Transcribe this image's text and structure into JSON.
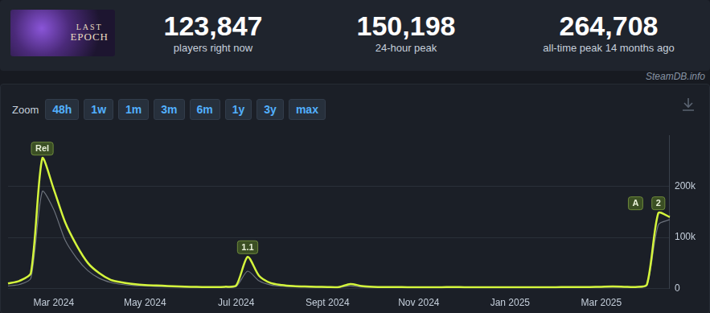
{
  "header": {
    "logo": [
      "LAST",
      "EPOCH"
    ],
    "stats": [
      {
        "value": "123,847",
        "label": "players right now"
      },
      {
        "value": "150,198",
        "label": "24-hour peak"
      },
      {
        "value": "264,708",
        "label": "all-time peak 14 months ago"
      }
    ],
    "source": "SteamDB.info",
    "zoom_label": "Zoom",
    "zoom_buttons": [
      "48h",
      "1w",
      "1m",
      "3m",
      "6m",
      "1y",
      "3y",
      "max"
    ]
  },
  "chart_data": {
    "type": "line",
    "categories": [
      null,
      null,
      null,
      null,
      "Mar 2024",
      null,
      null,
      null,
      null,
      null,
      null,
      null,
      "May 2024",
      null,
      null,
      null,
      null,
      null,
      null,
      null,
      "Jul 2024",
      null,
      null,
      null,
      null,
      null,
      null,
      null,
      "Sept 2024",
      null,
      null,
      null,
      null,
      null,
      null,
      null,
      "Nov 2024",
      null,
      null,
      null,
      null,
      null,
      null,
      null,
      "Jan 2025",
      null,
      null,
      null,
      null,
      null,
      null,
      null,
      "Mar 2025",
      null,
      null,
      null,
      null,
      null,
      null
    ],
    "series": [
      {
        "color": "#6b717b",
        "values": [
          5000,
          8000,
          20000,
          190000,
          155000,
          95000,
          60000,
          35000,
          20000,
          12000,
          8000,
          6000,
          5000,
          4000,
          3500,
          3000,
          2500,
          2500,
          2500,
          2500,
          4000,
          34000,
          15000,
          7000,
          4500,
          3500,
          3000,
          2500,
          2000,
          2000,
          5000,
          3000,
          2500,
          2000,
          2000,
          2000,
          2000,
          2000,
          2000,
          2000,
          2000,
          2000,
          2000,
          2000,
          2000,
          2000,
          2000,
          2000,
          2000,
          2000,
          2000,
          2000,
          2500,
          2500,
          2500,
          2500,
          6000,
          125000,
          135000
        ]
      },
      {
        "color": "#d4f53c",
        "values": [
          10000,
          15000,
          30000,
          255000,
          195000,
          130000,
          85000,
          50000,
          30000,
          17000,
          12000,
          9000,
          7000,
          6000,
          5000,
          4000,
          3500,
          3000,
          3000,
          3500,
          6000,
          62000,
          25000,
          11000,
          7000,
          5000,
          4000,
          3500,
          3000,
          3000,
          9000,
          5000,
          3500,
          3000,
          3000,
          2500,
          2500,
          2500,
          2500,
          3000,
          2500,
          2500,
          2500,
          2500,
          2500,
          2500,
          2500,
          2500,
          2500,
          3000,
          3000,
          3000,
          3500,
          4000,
          3500,
          3000,
          8000,
          148000,
          140000
        ]
      }
    ],
    "ylim": [
      0,
      300000
    ],
    "yticks": [
      0,
      {
        "value": 100000,
        "label": "100k"
      },
      {
        "value": 200000,
        "label": "200k"
      }
    ],
    "grid": true,
    "annotations": [
      {
        "label": "Rel",
        "index": 3
      },
      {
        "label": "1.1",
        "index": 21
      },
      {
        "label": "A",
        "index": 55
      },
      {
        "label": "2",
        "index": 57
      }
    ]
  }
}
